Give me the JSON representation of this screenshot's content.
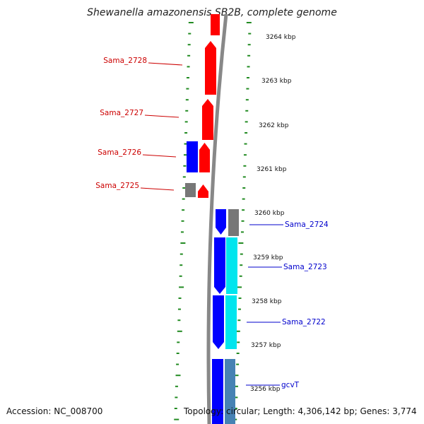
{
  "title": "Shewanella amazonensis SB2B, complete genome",
  "footer": {
    "accession": "Accession: NC_008700",
    "summary": "Topology: circular; Length: 4,306,142 bp; Genes: 3,774"
  },
  "colors": {
    "forward_gene": "#ff0000",
    "reverse_gene": "#0000ff",
    "other_feature": "#777777",
    "cyan_feature": "#00e5ee",
    "steel_feature": "#4682b4",
    "tick": "#228b22",
    "backbone": "#888888",
    "label_forward": "#cc0000",
    "label_reverse": "#0000cc"
  },
  "scale_labels": [
    "3264 kbp",
    "3263 kbp",
    "3262 kbp",
    "3261 kbp",
    "3260 kbp",
    "3259 kbp",
    "3258 kbp",
    "3257 kbp",
    "3256 kbp"
  ],
  "gene_labels": {
    "left": [
      "Sama_2728",
      "Sama_2727",
      "Sama_2726",
      "Sama_2725"
    ],
    "right": [
      "Sama_2724",
      "Sama_2723",
      "Sama_2722",
      "gcvT"
    ]
  }
}
